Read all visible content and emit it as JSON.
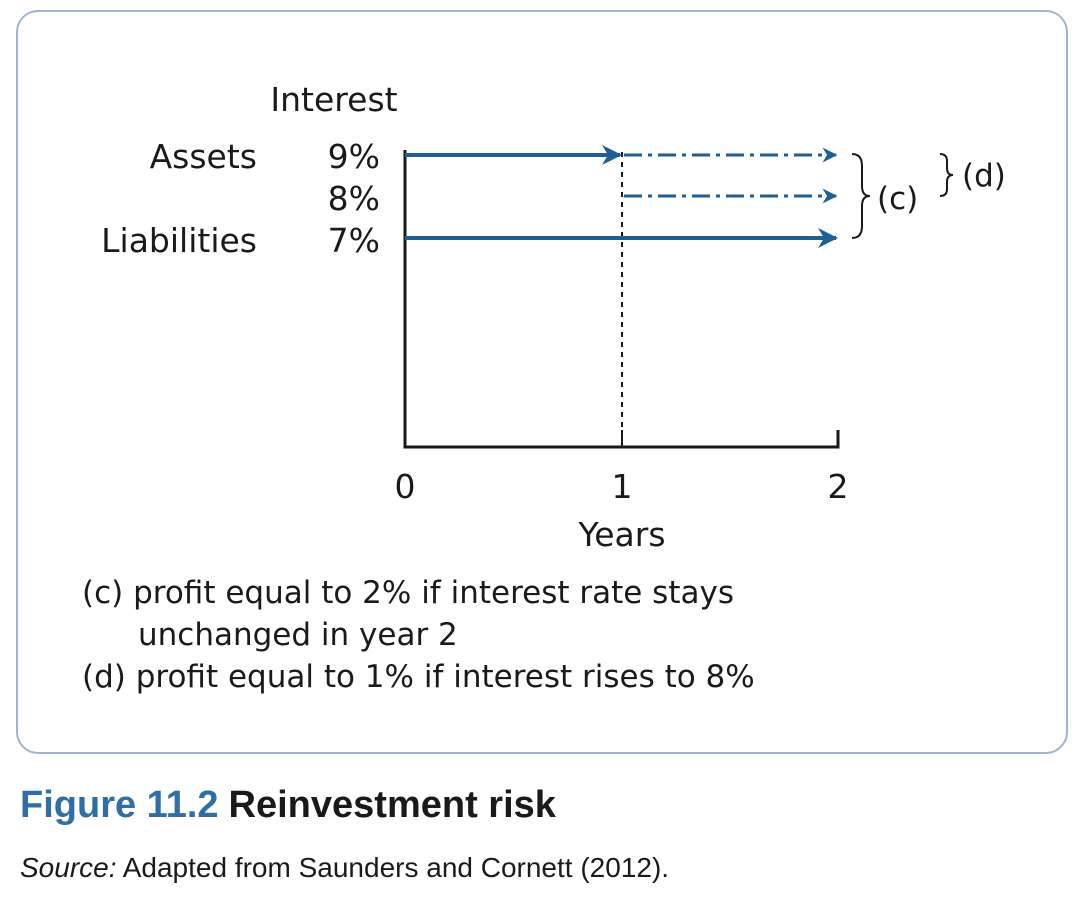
{
  "diagram": {
    "y_axis_title": "Interest",
    "row_labels": {
      "assets": "Assets",
      "liabilities": "Liabilities"
    },
    "rates": [
      "9%",
      "8%",
      "7%"
    ],
    "x_ticks": [
      "0",
      "1",
      "2"
    ],
    "x_axis_title": "Years",
    "brace_labels": {
      "c": "(c)",
      "d": "(d)"
    },
    "line_color": "#1e5f96"
  },
  "notes": {
    "c_line1": "(c) profit equal to 2% if interest rate stays",
    "c_line2": "unchanged in year 2",
    "d_line": "(d) profit equal to 1% if interest rises to 8%"
  },
  "caption": {
    "figure_number": "Figure 11.2",
    "figure_title": "Reinvestment risk"
  },
  "source": {
    "label": "Source:",
    "text": " Adapted from Saunders and Cornett (2012)."
  }
}
